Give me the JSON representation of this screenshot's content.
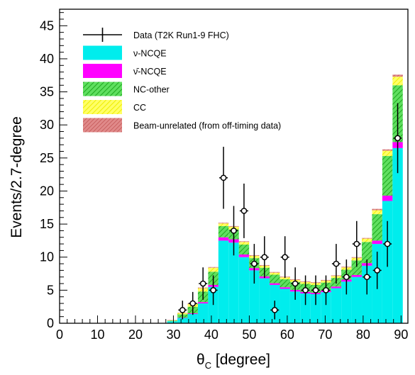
{
  "chart_data": {
    "type": "stacked-histogram",
    "xlabel_main": "θ",
    "xlabel_sub": "C",
    "xlabel_rest": " [degree]",
    "ylabel": "Events/2.7-degree",
    "xlim": [
      0,
      91.8
    ],
    "ylim": [
      0,
      47.5
    ],
    "bin_width": 2.7,
    "x_ticks": [
      0,
      10,
      20,
      30,
      40,
      50,
      60,
      70,
      80,
      90
    ],
    "y_ticks": [
      0,
      5,
      10,
      15,
      20,
      25,
      30,
      35,
      40,
      45
    ],
    "legend": [
      {
        "key": "data",
        "label": "Data (T2K Run1-9 FHC)",
        "style": "errorbar"
      },
      {
        "key": "nuNCQE",
        "label": "ν-NCQE",
        "color": "#00f0f0",
        "style": "fill"
      },
      {
        "key": "nubarNCQE",
        "label": "ν̄-NCQE",
        "color": "#ff00ff",
        "style": "fill"
      },
      {
        "key": "NCother",
        "label": "NC-other",
        "color": "#2ecc2e",
        "style": "hatch"
      },
      {
        "key": "CC",
        "label": "CC",
        "color": "#ffff33",
        "style": "hatch"
      },
      {
        "key": "beam_unrelated",
        "label": "Beam-unrelated (from off-timing data)",
        "color": "#d07070",
        "style": "hatch"
      }
    ],
    "bin_centers": [
      29.7,
      32.4,
      35.1,
      37.8,
      40.5,
      43.2,
      45.9,
      48.6,
      51.3,
      54.0,
      56.7,
      59.4,
      62.1,
      64.8,
      67.5,
      70.2,
      72.9,
      75.6,
      78.3,
      81.0,
      83.7,
      86.4,
      89.1
    ],
    "series": [
      {
        "name": "ν-NCQE",
        "key": "nuNCQE",
        "values": [
          0.3,
          0.8,
          1.4,
          3.0,
          5.5,
          12.5,
          12.2,
          10.0,
          8.0,
          6.8,
          5.8,
          5.2,
          4.8,
          4.5,
          4.4,
          4.7,
          5.3,
          6.3,
          7.0,
          8.7,
          12.0,
          18.5,
          26.5
        ]
      },
      {
        "name": "ν̄-NCQE",
        "key": "nubarNCQE",
        "values": [
          0.0,
          0.05,
          0.1,
          0.2,
          0.3,
          0.5,
          0.5,
          0.4,
          0.35,
          0.3,
          0.25,
          0.25,
          0.25,
          0.25,
          0.2,
          0.25,
          0.25,
          0.3,
          0.3,
          0.4,
          0.5,
          0.8,
          0.9
        ]
      },
      {
        "name": "NC-other",
        "key": "NCother",
        "values": [
          0.1,
          0.5,
          1.0,
          1.6,
          2.0,
          1.7,
          1.5,
          1.5,
          1.5,
          1.3,
          1.3,
          1.2,
          1.2,
          1.2,
          1.2,
          1.2,
          1.3,
          1.5,
          2.2,
          3.2,
          4.0,
          6.0,
          8.6
        ]
      },
      {
        "name": "CC",
        "key": "CC",
        "values": [
          0.05,
          0.2,
          0.4,
          0.5,
          0.6,
          0.4,
          0.4,
          0.4,
          0.35,
          0.3,
          0.3,
          0.3,
          0.3,
          0.3,
          0.3,
          0.3,
          0.3,
          0.35,
          0.4,
          0.5,
          0.6,
          0.8,
          1.3
        ]
      },
      {
        "name": "Beam-unrelated (from off-timing data)",
        "key": "beam_unrelated",
        "values": [
          0.05,
          0.05,
          0.1,
          0.1,
          0.1,
          0.1,
          0.1,
          0.1,
          0.1,
          0.1,
          0.1,
          0.1,
          0.1,
          0.1,
          0.1,
          0.1,
          0.1,
          0.1,
          0.1,
          0.1,
          0.2,
          0.2,
          0.3
        ]
      }
    ],
    "data_points": {
      "x": [
        32.4,
        35.1,
        37.8,
        40.5,
        43.2,
        45.9,
        48.6,
        51.3,
        54.0,
        56.7,
        59.4,
        62.1,
        64.8,
        67.5,
        70.2,
        72.9,
        75.6,
        78.3,
        81.0,
        83.7,
        86.4,
        89.1
      ],
      "y": [
        2,
        3,
        6,
        5,
        22,
        14,
        17,
        9,
        10,
        2,
        10,
        6,
        5,
        5,
        5,
        9,
        7,
        12,
        7,
        8,
        12,
        28
      ]
    }
  }
}
